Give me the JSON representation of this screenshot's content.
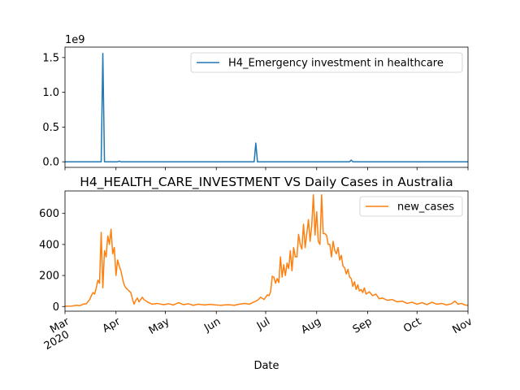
{
  "chart_data": [
    {
      "type": "line",
      "title": "",
      "xlabel": "",
      "ylabel": "",
      "y_offset_text": "1e9",
      "ylim": [
        -0.08,
        1.65
      ],
      "yticks": [
        "0.0",
        "0.5",
        "1.0",
        "1.5"
      ],
      "ytick_values": [
        0.0,
        0.5,
        1.0,
        1.5
      ],
      "xlim": [
        "2020-03-01",
        "2020-11-01"
      ],
      "legend_position": "upper-right",
      "series": [
        {
          "name": "H4_Emergency investment in healthcare",
          "color": "#1f77b4",
          "points": [
            [
              "2020-03-01",
              0
            ],
            [
              "2020-03-23",
              0
            ],
            [
              "2020-03-24",
              1.56
            ],
            [
              "2020-03-25",
              0
            ],
            [
              "2020-04-02",
              0
            ],
            [
              "2020-04-03",
              0.01
            ],
            [
              "2020-04-04",
              0
            ],
            [
              "2020-06-24",
              0
            ],
            [
              "2020-06-25",
              0.27
            ],
            [
              "2020-06-26",
              0
            ],
            [
              "2020-08-21",
              0
            ],
            [
              "2020-08-22",
              0.025
            ],
            [
              "2020-08-23",
              0
            ],
            [
              "2020-11-01",
              0
            ]
          ]
        }
      ]
    },
    {
      "type": "line",
      "title": "H4_HEALTH_CARE_INVESTMENT VS Daily Cases in Australia",
      "xlabel": "Date",
      "ylabel": "",
      "ylim": [
        -30,
        745
      ],
      "yticks": [
        "0",
        "200",
        "400",
        "600"
      ],
      "ytick_values": [
        0,
        200,
        400,
        600
      ],
      "xlim": [
        "2020-03-01",
        "2020-11-01"
      ],
      "xticks": [
        {
          "date": "2020-03-01",
          "label": "Mar",
          "sublabel": "2020"
        },
        {
          "date": "2020-04-01",
          "label": "Apr"
        },
        {
          "date": "2020-05-01",
          "label": "May"
        },
        {
          "date": "2020-06-01",
          "label": "Jun"
        },
        {
          "date": "2020-07-01",
          "label": "Jul"
        },
        {
          "date": "2020-08-01",
          "label": "Aug"
        },
        {
          "date": "2020-09-01",
          "label": "Sep"
        },
        {
          "date": "2020-10-01",
          "label": "Oct"
        },
        {
          "date": "2020-11-01",
          "label": "Nov"
        }
      ],
      "legend_position": "upper-right",
      "series": [
        {
          "name": "new_cases",
          "color": "#ff7f0e",
          "points": [
            [
              "2020-03-01",
              2
            ],
            [
              "2020-03-05",
              3
            ],
            [
              "2020-03-08",
              8
            ],
            [
              "2020-03-10",
              6
            ],
            [
              "2020-03-12",
              15
            ],
            [
              "2020-03-14",
              18
            ],
            [
              "2020-03-16",
              45
            ],
            [
              "2020-03-17",
              70
            ],
            [
              "2020-03-18",
              90
            ],
            [
              "2020-03-19",
              80
            ],
            [
              "2020-03-20",
              120
            ],
            [
              "2020-03-21",
              170
            ],
            [
              "2020-03-22",
              150
            ],
            [
              "2020-03-23",
              478
            ],
            [
              "2020-03-24",
              120
            ],
            [
              "2020-03-25",
              360
            ],
            [
              "2020-03-26",
              320
            ],
            [
              "2020-03-27",
              455
            ],
            [
              "2020-03-28",
              400
            ],
            [
              "2020-03-29",
              498
            ],
            [
              "2020-03-30",
              340
            ],
            [
              "2020-03-31",
              380
            ],
            [
              "2020-04-01",
              200
            ],
            [
              "2020-04-02",
              300
            ],
            [
              "2020-04-03",
              260
            ],
            [
              "2020-04-04",
              230
            ],
            [
              "2020-04-05",
              180
            ],
            [
              "2020-04-06",
              140
            ],
            [
              "2020-04-07",
              120
            ],
            [
              "2020-04-08",
              110
            ],
            [
              "2020-04-09",
              100
            ],
            [
              "2020-04-10",
              90
            ],
            [
              "2020-04-11",
              50
            ],
            [
              "2020-04-12",
              15
            ],
            [
              "2020-04-13",
              40
            ],
            [
              "2020-04-14",
              55
            ],
            [
              "2020-04-15",
              30
            ],
            [
              "2020-04-17",
              60
            ],
            [
              "2020-04-18",
              45
            ],
            [
              "2020-04-20",
              30
            ],
            [
              "2020-04-23",
              15
            ],
            [
              "2020-04-26",
              20
            ],
            [
              "2020-04-30",
              12
            ],
            [
              "2020-05-03",
              18
            ],
            [
              "2020-05-06",
              10
            ],
            [
              "2020-05-09",
              25
            ],
            [
              "2020-05-12",
              12
            ],
            [
              "2020-05-15",
              18
            ],
            [
              "2020-05-18",
              8
            ],
            [
              "2020-05-21",
              15
            ],
            [
              "2020-05-25",
              10
            ],
            [
              "2020-05-28",
              14
            ],
            [
              "2020-06-01",
              10
            ],
            [
              "2020-06-04",
              8
            ],
            [
              "2020-06-08",
              12
            ],
            [
              "2020-06-12",
              8
            ],
            [
              "2020-06-15",
              15
            ],
            [
              "2020-06-18",
              20
            ],
            [
              "2020-06-21",
              15
            ],
            [
              "2020-06-24",
              30
            ],
            [
              "2020-06-26",
              40
            ],
            [
              "2020-06-28",
              60
            ],
            [
              "2020-06-30",
              45
            ],
            [
              "2020-07-02",
              75
            ],
            [
              "2020-07-03",
              70
            ],
            [
              "2020-07-04",
              95
            ],
            [
              "2020-07-05",
              195
            ],
            [
              "2020-07-06",
              190
            ],
            [
              "2020-07-07",
              150
            ],
            [
              "2020-07-08",
              180
            ],
            [
              "2020-07-09",
              155
            ],
            [
              "2020-07-10",
              320
            ],
            [
              "2020-07-11",
              190
            ],
            [
              "2020-07-12",
              270
            ],
            [
              "2020-07-13",
              200
            ],
            [
              "2020-07-14",
              280
            ],
            [
              "2020-07-15",
              245
            ],
            [
              "2020-07-16",
              360
            ],
            [
              "2020-07-17",
              230
            ],
            [
              "2020-07-18",
              380
            ],
            [
              "2020-07-19",
              320
            ],
            [
              "2020-07-20",
              320
            ],
            [
              "2020-07-21",
              465
            ],
            [
              "2020-07-22",
              400
            ],
            [
              "2020-07-23",
              370
            ],
            [
              "2020-07-24",
              530
            ],
            [
              "2020-07-25",
              380
            ],
            [
              "2020-07-26",
              470
            ],
            [
              "2020-07-27",
              560
            ],
            [
              "2020-07-28",
              420
            ],
            [
              "2020-07-29",
              520
            ],
            [
              "2020-07-30",
              720
            ],
            [
              "2020-07-31",
              460
            ],
            [
              "2020-08-01",
              610
            ],
            [
              "2020-08-02",
              420
            ],
            [
              "2020-08-03",
              400
            ],
            [
              "2020-08-04",
              720
            ],
            [
              "2020-08-05",
              470
            ],
            [
              "2020-08-06",
              470
            ],
            [
              "2020-08-07",
              460
            ],
            [
              "2020-08-08",
              400
            ],
            [
              "2020-08-09",
              400
            ],
            [
              "2020-08-10",
              320
            ],
            [
              "2020-08-11",
              420
            ],
            [
              "2020-08-12",
              360
            ],
            [
              "2020-08-13",
              340
            ],
            [
              "2020-08-14",
              380
            ],
            [
              "2020-08-15",
              300
            ],
            [
              "2020-08-16",
              330
            ],
            [
              "2020-08-17",
              260
            ],
            [
              "2020-08-18",
              250
            ],
            [
              "2020-08-19",
              210
            ],
            [
              "2020-08-20",
              240
            ],
            [
              "2020-08-21",
              190
            ],
            [
              "2020-08-22",
              180
            ],
            [
              "2020-08-23",
              130
            ],
            [
              "2020-08-24",
              160
            ],
            [
              "2020-08-25",
              110
            ],
            [
              "2020-08-26",
              140
            ],
            [
              "2020-08-27",
              100
            ],
            [
              "2020-08-28",
              110
            ],
            [
              "2020-08-29",
              90
            ],
            [
              "2020-08-30",
              120
            ],
            [
              "2020-08-31",
              80
            ],
            [
              "2020-09-02",
              95
            ],
            [
              "2020-09-04",
              70
            ],
            [
              "2020-09-06",
              80
            ],
            [
              "2020-09-08",
              50
            ],
            [
              "2020-09-10",
              55
            ],
            [
              "2020-09-13",
              40
            ],
            [
              "2020-09-16",
              45
            ],
            [
              "2020-09-19",
              30
            ],
            [
              "2020-09-22",
              35
            ],
            [
              "2020-09-25",
              20
            ],
            [
              "2020-09-28",
              28
            ],
            [
              "2020-10-01",
              15
            ],
            [
              "2020-10-04",
              25
            ],
            [
              "2020-10-07",
              12
            ],
            [
              "2020-10-10",
              28
            ],
            [
              "2020-10-13",
              15
            ],
            [
              "2020-10-16",
              20
            ],
            [
              "2020-10-19",
              10
            ],
            [
              "2020-10-22",
              18
            ],
            [
              "2020-10-24",
              35
            ],
            [
              "2020-10-26",
              15
            ],
            [
              "2020-10-28",
              20
            ],
            [
              "2020-10-30",
              10
            ],
            [
              "2020-11-01",
              8
            ]
          ]
        }
      ]
    }
  ]
}
